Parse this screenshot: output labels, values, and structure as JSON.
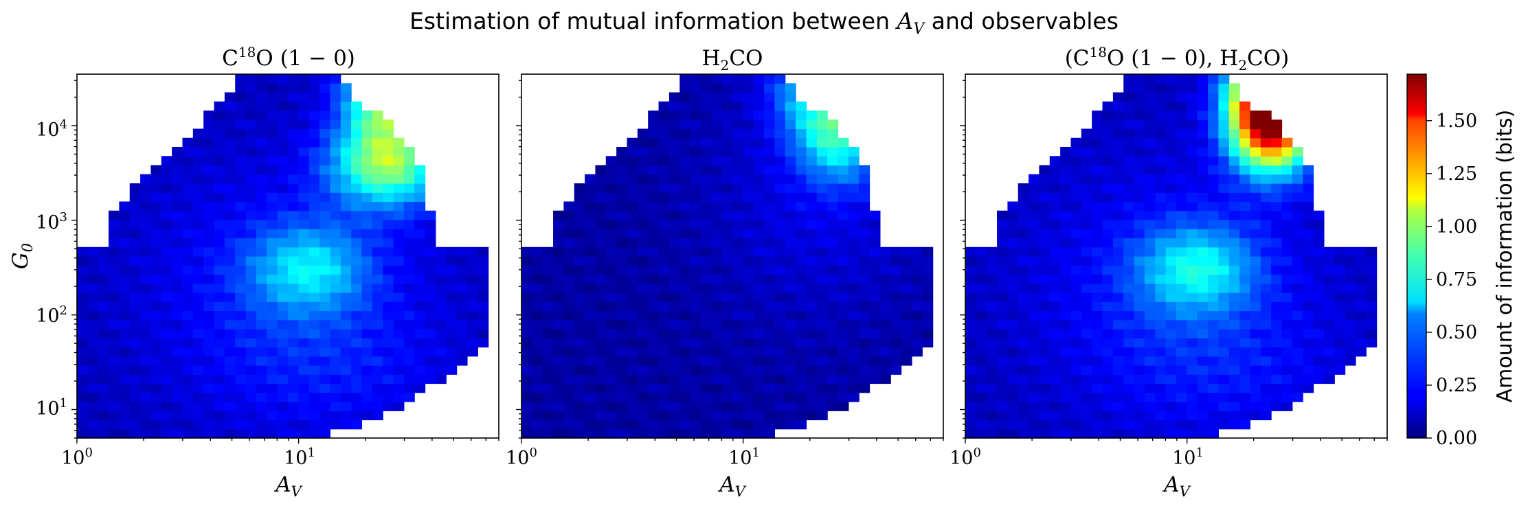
{
  "figure": {
    "title_prefix": "Estimation of mutual information between ",
    "title_var": "A",
    "title_var_sub": "V",
    "title_suffix": " and observables"
  },
  "colorbar": {
    "label": "Amount of information (bits)",
    "ticks": [
      "0.00",
      "0.25",
      "0.50",
      "0.75",
      "1.00",
      "1.25",
      "1.50"
    ],
    "range": [
      0,
      1.72
    ],
    "colormap": "jet"
  },
  "axis_text": {
    "xlabel_main": "A",
    "xlabel_sub": "V",
    "ylabel_main": "G",
    "ylabel_sub": "0",
    "xtick_base": "10",
    "xtick_exps": [
      "0",
      "1"
    ],
    "ytick_base": "10",
    "ytick_exps": [
      "1",
      "2",
      "3",
      "4"
    ]
  },
  "panels": [
    {
      "title_parts": {
        "a": "C",
        "b": "18",
        "c": "O (1 − 0)",
        "d": "",
        "e": "",
        "f": ""
      }
    },
    {
      "title_parts": {
        "a": "H",
        "b": "2",
        "c": "CO",
        "d": "",
        "e": "",
        "f": ""
      }
    },
    {
      "title_parts": {
        "a": "(C",
        "b": "18",
        "c": "O (1 − 0), H",
        "d": "2",
        "e": "CO)",
        "f": ""
      }
    }
  ],
  "chart_data": [
    {
      "type": "heatmap",
      "title": "C18O (1 − 0)",
      "xlabel": "A_V",
      "ylabel": "G_0",
      "xscale": "log",
      "yscale": "log",
      "xlim": [
        1,
        80
      ],
      "ylim": [
        5,
        35000
      ],
      "grid": false,
      "peaks": [
        {
          "A_V": 25,
          "G_0": 25000,
          "value": 1.0
        },
        {
          "A_V": 25,
          "G_0": 4000,
          "value": 0.9
        },
        {
          "A_V": 11,
          "G_0": 300,
          "value": 0.65
        }
      ]
    },
    {
      "type": "heatmap",
      "title": "H2CO",
      "xlabel": "A_V",
      "ylabel": "",
      "xscale": "log",
      "yscale": "log",
      "xlim": [
        1,
        80
      ],
      "ylim": [
        5,
        35000
      ],
      "grid": false,
      "peaks": [
        {
          "A_V": 27,
          "G_0": 8000,
          "value": 0.72
        },
        {
          "A_V": 20,
          "G_0": 25000,
          "value": 0.5
        }
      ]
    },
    {
      "type": "heatmap",
      "title": "(C18O (1 − 0), H2CO)",
      "xlabel": "A_V",
      "ylabel": "",
      "xscale": "log",
      "yscale": "log",
      "xlim": [
        1,
        80
      ],
      "ylim": [
        5,
        35000
      ],
      "grid": false,
      "peaks": [
        {
          "A_V": 24,
          "G_0": 28000,
          "value": 1.2
        },
        {
          "A_V": 24,
          "G_0": 10000,
          "value": 1.45
        },
        {
          "A_V": 11,
          "G_0": 300,
          "value": 0.7
        }
      ]
    }
  ]
}
